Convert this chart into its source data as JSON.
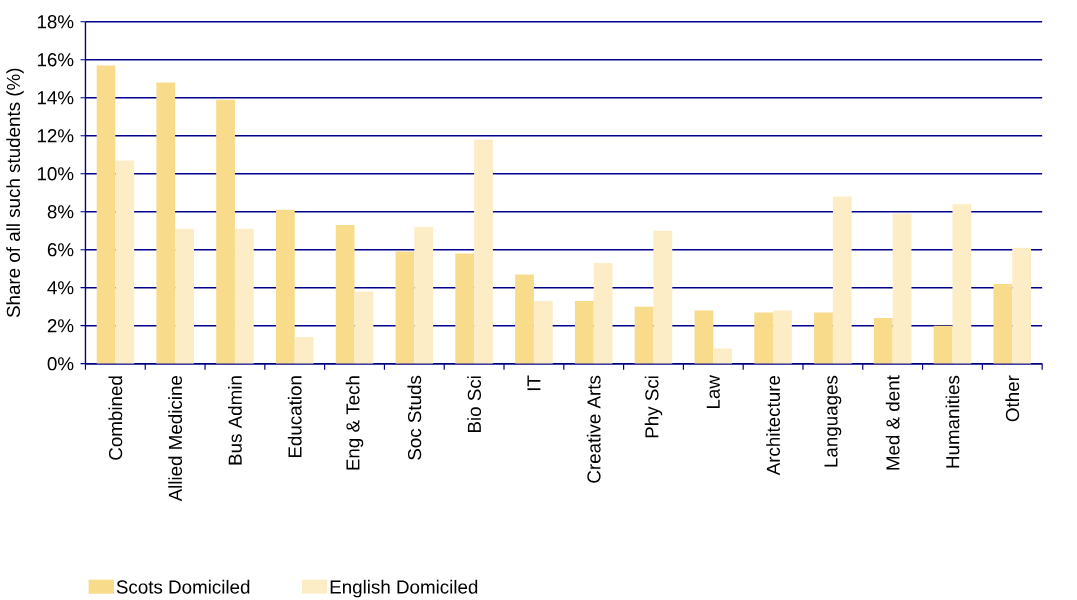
{
  "chart_data": {
    "type": "bar",
    "ylabel": "Share of all such students (%)",
    "categories": [
      "Combined",
      "Allied Medicine",
      "Bus Admin",
      "Education",
      "Eng & Tech",
      "Soc Studs",
      "Bio Sci",
      "IT",
      "Creative Arts",
      "Phy Sci",
      "Law",
      "Architecture",
      "Languages",
      "Med & dent",
      "Humanities",
      "Other"
    ],
    "series": [
      {
        "name": "Scots Domiciled",
        "color": "#f8dc8c",
        "values": [
          15.7,
          14.8,
          13.9,
          8.1,
          7.3,
          5.9,
          5.8,
          4.7,
          3.3,
          3.0,
          2.8,
          2.7,
          2.7,
          2.4,
          2.0,
          4.2
        ]
      },
      {
        "name": "English Domiciled",
        "color": "#fdedc7",
        "values": [
          10.7,
          7.1,
          7.1,
          1.4,
          3.8,
          7.2,
          11.8,
          3.3,
          5.3,
          7.0,
          0.8,
          2.8,
          8.8,
          7.9,
          8.4,
          6.1
        ]
      }
    ],
    "ylim": [
      0,
      18
    ],
    "yticks": [
      {
        "value": 0,
        "label": "0%"
      },
      {
        "value": 2,
        "label": "2%"
      },
      {
        "value": 4,
        "label": "4%"
      },
      {
        "value": 6,
        "label": "6%"
      },
      {
        "value": 8,
        "label": "8%"
      },
      {
        "value": 10,
        "label": "10%"
      },
      {
        "value": 12,
        "label": "12%"
      },
      {
        "value": 14,
        "label": "14%"
      },
      {
        "value": 16,
        "label": "16%"
      },
      {
        "value": 18,
        "label": "18%"
      }
    ],
    "grid": "y",
    "legend": "bottom"
  }
}
